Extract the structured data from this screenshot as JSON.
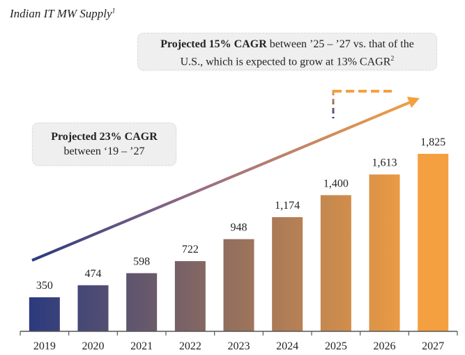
{
  "header": {
    "title": "Indian IT MW Supply",
    "title_footnote": "1"
  },
  "callouts": {
    "top": {
      "bold": "Projected 15% CAGR",
      "line1_rest": " between ’25 – ’27 vs. that of the",
      "line2": "U.S., which is expected to grow at 13% CAGR",
      "footnote": "2"
    },
    "left": {
      "bold": "Projected 23% CAGR",
      "line2": "between ‘19 – ’27"
    }
  },
  "colors": {
    "start": "#2b3a7e",
    "end": "#f4a040",
    "axis": "#555555"
  },
  "chart_data": {
    "type": "bar",
    "title": "Indian IT MW Supply",
    "xlabel": "",
    "ylabel": "",
    "categories": [
      "2019",
      "2020",
      "2021",
      "2022",
      "2023",
      "2024",
      "2025",
      "2026",
      "2027"
    ],
    "values": [
      350,
      474,
      598,
      722,
      948,
      1174,
      1400,
      1613,
      1825
    ],
    "data_labels": [
      "350",
      "474",
      "598",
      "722",
      "948",
      "1,174",
      "1,400",
      "1,613",
      "1,825"
    ],
    "ylim": [
      0,
      1825
    ],
    "grid": false,
    "annotations": [
      "Projected 23% CAGR between ‘19 – ’27",
      "Projected 15% CAGR between ’25 – ’27 vs. that of the U.S., which is expected to grow at 13% CAGR"
    ]
  }
}
